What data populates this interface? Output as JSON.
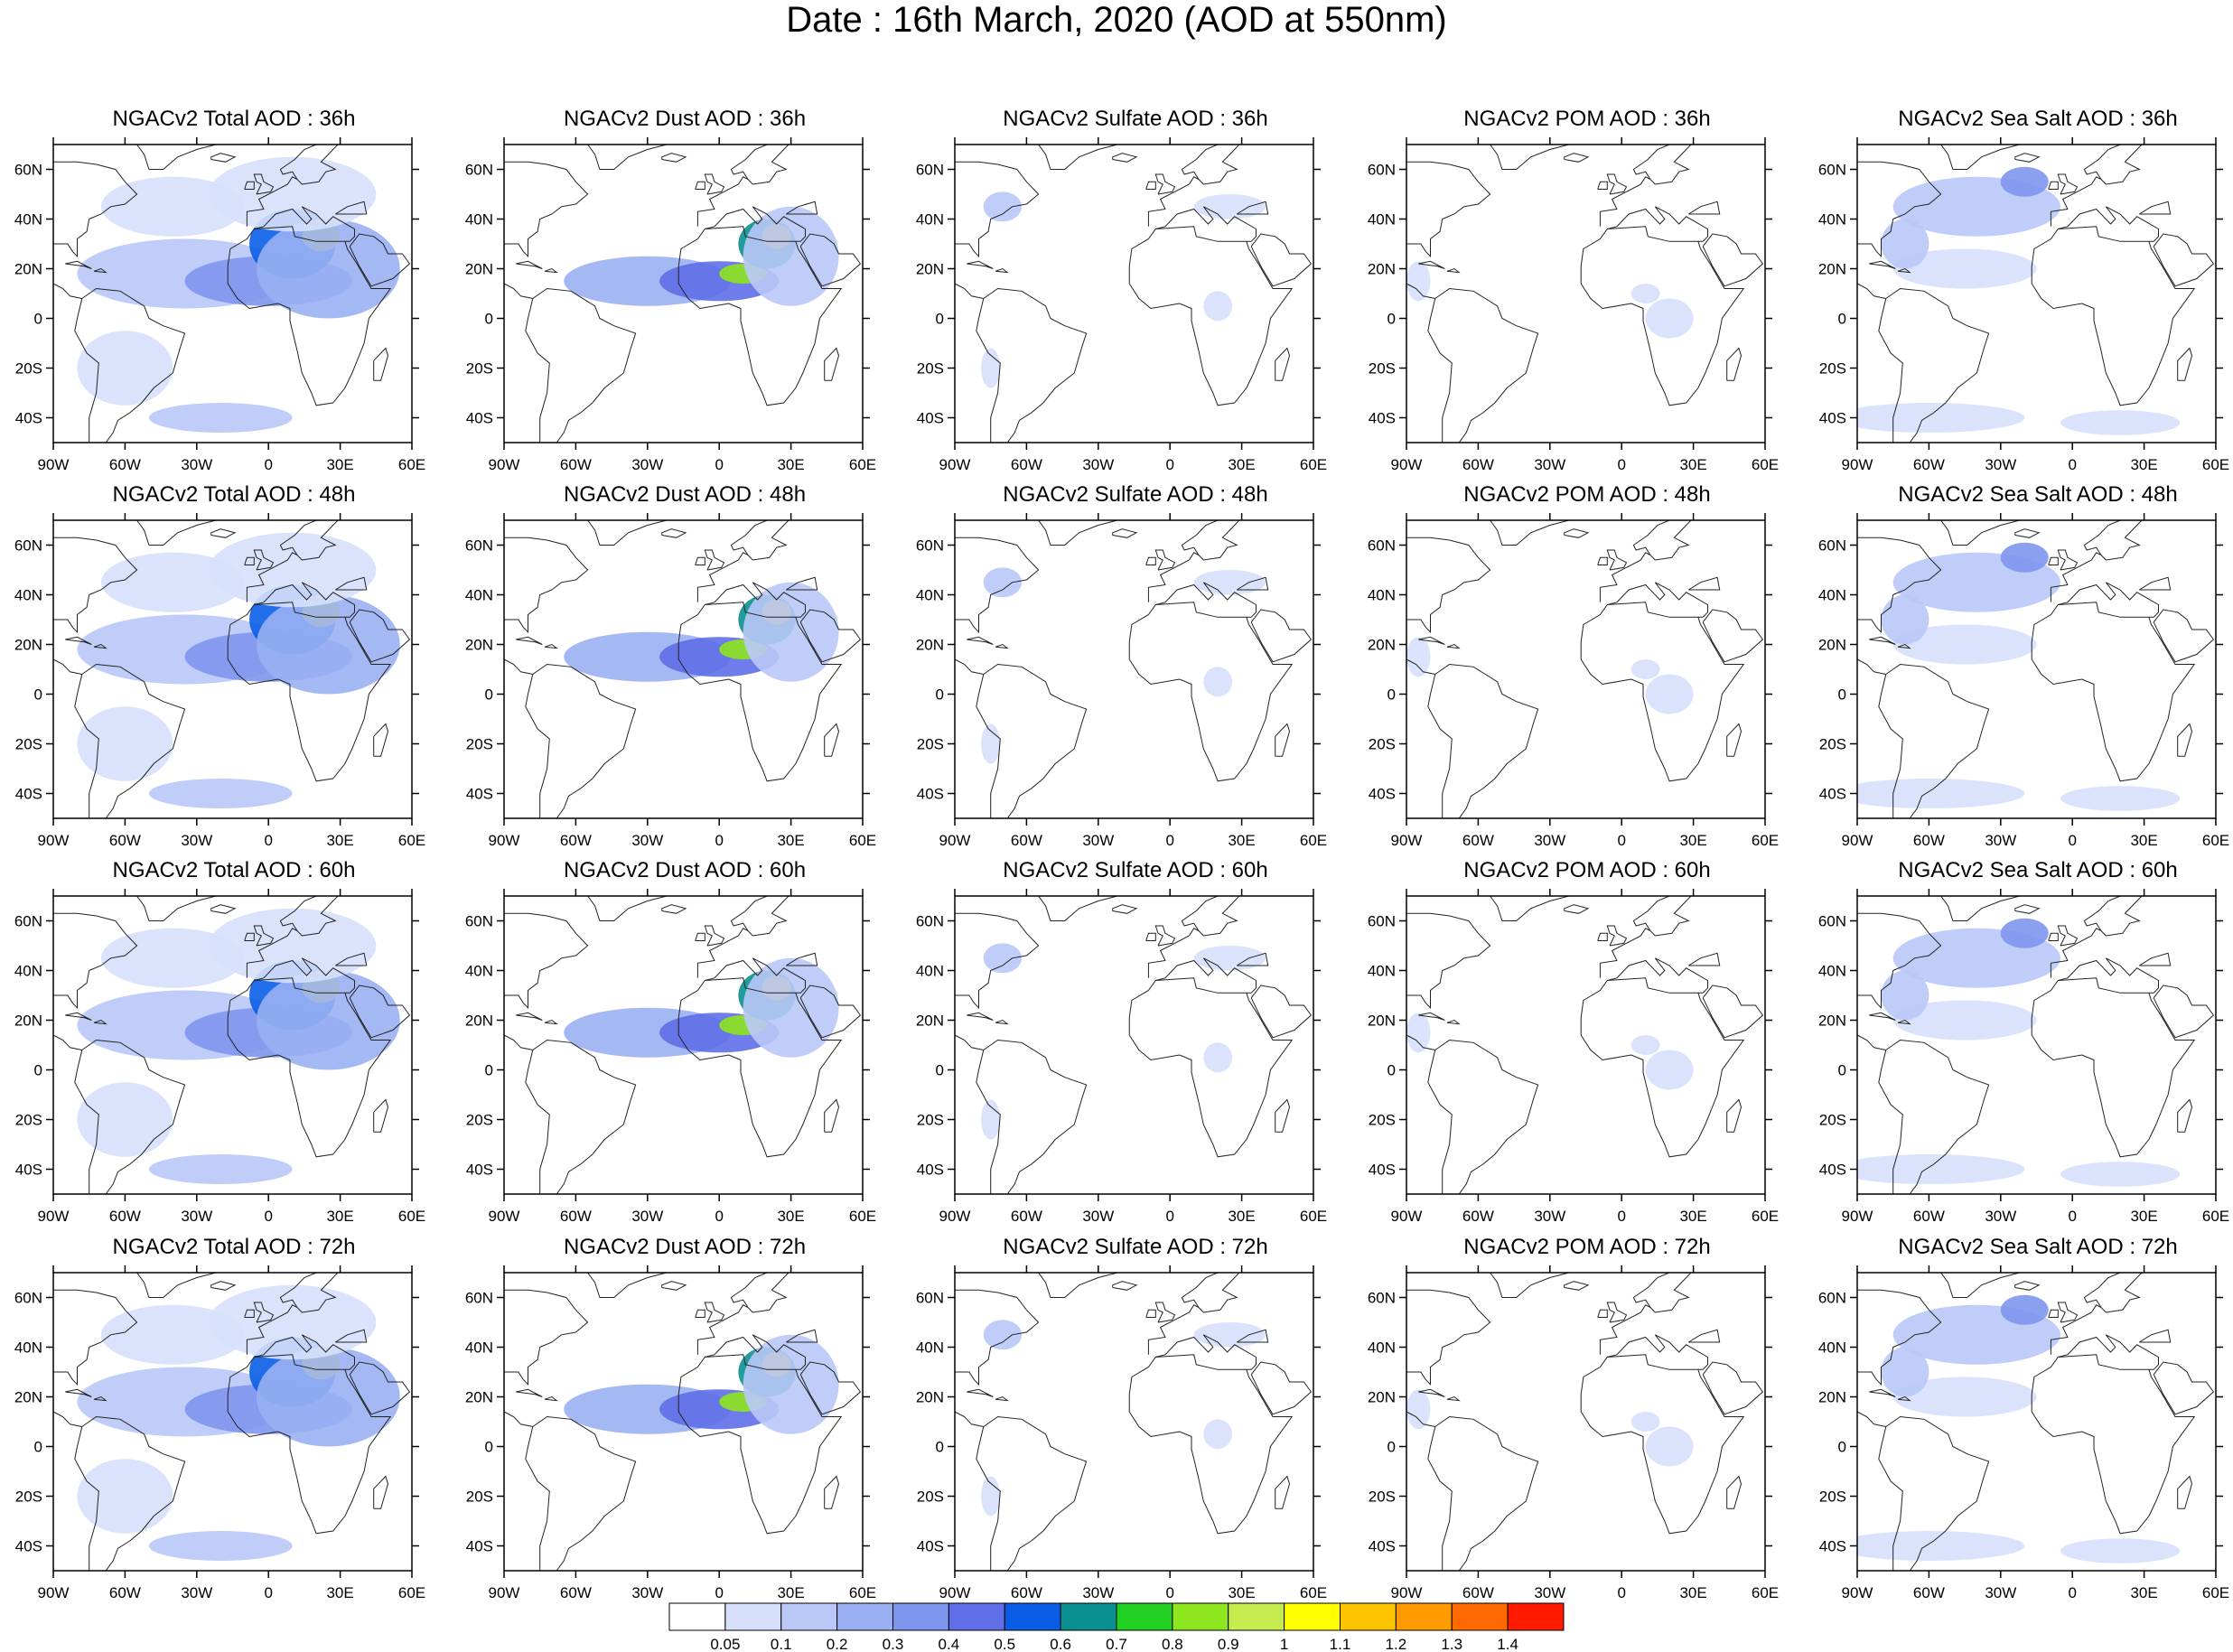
{
  "title": "Date : 16th March, 2020 (AOD at 550nm)",
  "panels": [
    [
      "NGACv2 Total AOD : 36h",
      "NGACv2 Dust AOD : 36h",
      "NGACv2 Sulfate AOD : 36h",
      "NGACv2 POM AOD : 36h",
      "NGACv2 Sea Salt AOD : 36h"
    ],
    [
      "NGACv2 Total AOD : 48h",
      "NGACv2 Dust AOD : 48h",
      "NGACv2 Sulfate AOD : 48h",
      "NGACv2 POM AOD : 48h",
      "NGACv2 Sea Salt AOD : 48h"
    ],
    [
      "NGACv2 Total AOD : 60h",
      "NGACv2 Dust AOD : 60h",
      "NGACv2 Sulfate AOD : 60h",
      "NGACv2 POM AOD : 60h",
      "NGACv2 Sea Salt AOD : 60h"
    ],
    [
      "NGACv2 Total AOD : 72h",
      "NGACv2 Dust AOD : 72h",
      "NGACv2 Sulfate AOD : 72h",
      "NGACv2 POM AOD : 72h",
      "NGACv2 Sea Salt  AOD : 72h"
    ]
  ],
  "lon_ticks": [
    "90W",
    "60W",
    "30W",
    "0",
    "30E",
    "60E"
  ],
  "lat_ticks": [
    "60N",
    "40N",
    "20N",
    "0",
    "20S",
    "40S"
  ],
  "lon_range": [
    -90,
    60
  ],
  "lat_range": [
    -50,
    70
  ],
  "colorbar": {
    "labels": [
      "0.05",
      "0.1",
      "0.2",
      "0.3",
      "0.4",
      "0.5",
      "0.6",
      "0.7",
      "0.8",
      "0.9",
      "1",
      "1.1",
      "1.2",
      "1.3",
      "1.4"
    ],
    "colors": [
      "#ffffff",
      "#d6e0fb",
      "#b9c8f7",
      "#9ab0f3",
      "#7f96ee",
      "#5f6fe8",
      "#0a5ee6",
      "#0a9090",
      "#22d022",
      "#8ee61e",
      "#c6ec50",
      "#ffff00",
      "#ffc400",
      "#ff9a00",
      "#ff6a00",
      "#ff1a00"
    ]
  },
  "colors": {
    "land_outline": "#222222",
    "frame": "#000000"
  }
}
